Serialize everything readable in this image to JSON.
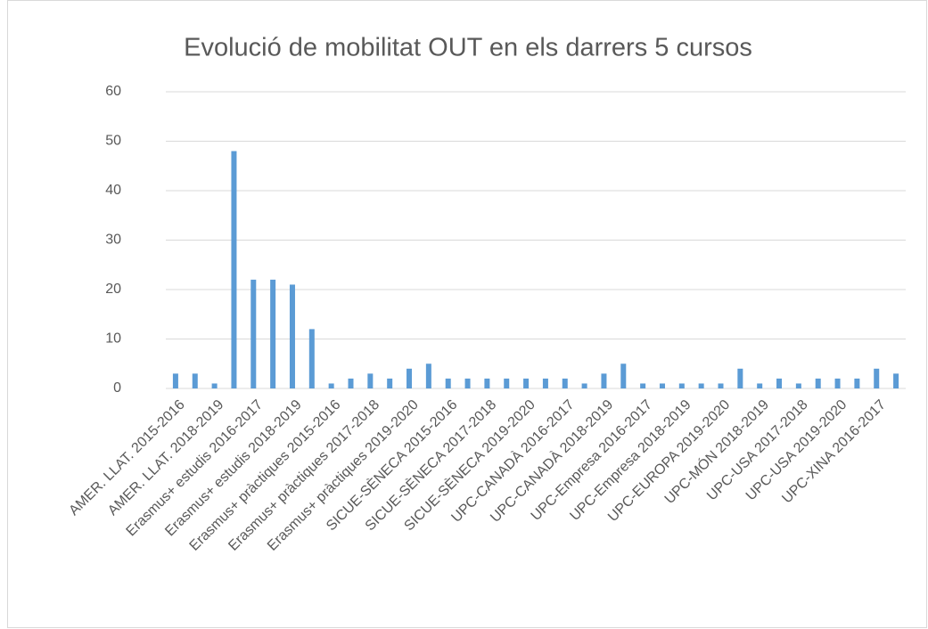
{
  "chart_data": {
    "type": "bar",
    "title": "Evolució de mobilitat OUT en els darrers 5 cursos",
    "categories": [
      "AMER. LLAT. 2015-2016",
      null,
      "AMER. LLAT. 2018-2019",
      null,
      "Erasmus+ estudis 2016-2017",
      null,
      "Erasmus+ estudis 2018-2019",
      null,
      "Erasmus+ pràctiques 2015-2016",
      null,
      "Erasmus+ pràctiques 2017-2018",
      null,
      "Erasmus+ pràctiques 2019-2020",
      null,
      "SICUE-SÈNECA 2015-2016",
      null,
      "SICUE-SÈNECA 2017-2018",
      null,
      "SICUE-SÈNECA 2019-2020",
      null,
      "UPC-CANADÀ 2016-2017",
      null,
      "UPC-CANADÀ 2018-2019",
      null,
      "UPC-Empresa 2016-2017",
      null,
      "UPC-Empresa 2018-2019",
      null,
      "UPC-EUROPA 2019-2020",
      null,
      "UPC-MÓN 2018-2019",
      null,
      "UPC-USA 2017-2018",
      null,
      "UPC-USA 2019-2020",
      null,
      "UPC-XINA 2016-2017",
      null
    ],
    "values": [
      3,
      3,
      1,
      48,
      22,
      22,
      21,
      12,
      1,
      2,
      3,
      2,
      4,
      5,
      2,
      2,
      2,
      2,
      2,
      2,
      2,
      1,
      3,
      5,
      1,
      1,
      1,
      1,
      1,
      4,
      1,
      2,
      1,
      2,
      2,
      2,
      4,
      3
    ],
    "color": "#5b9bd5",
    "ylim": [
      0,
      60
    ],
    "yticks": [
      0,
      10,
      20,
      30,
      40,
      50,
      60
    ],
    "grid": true
  }
}
